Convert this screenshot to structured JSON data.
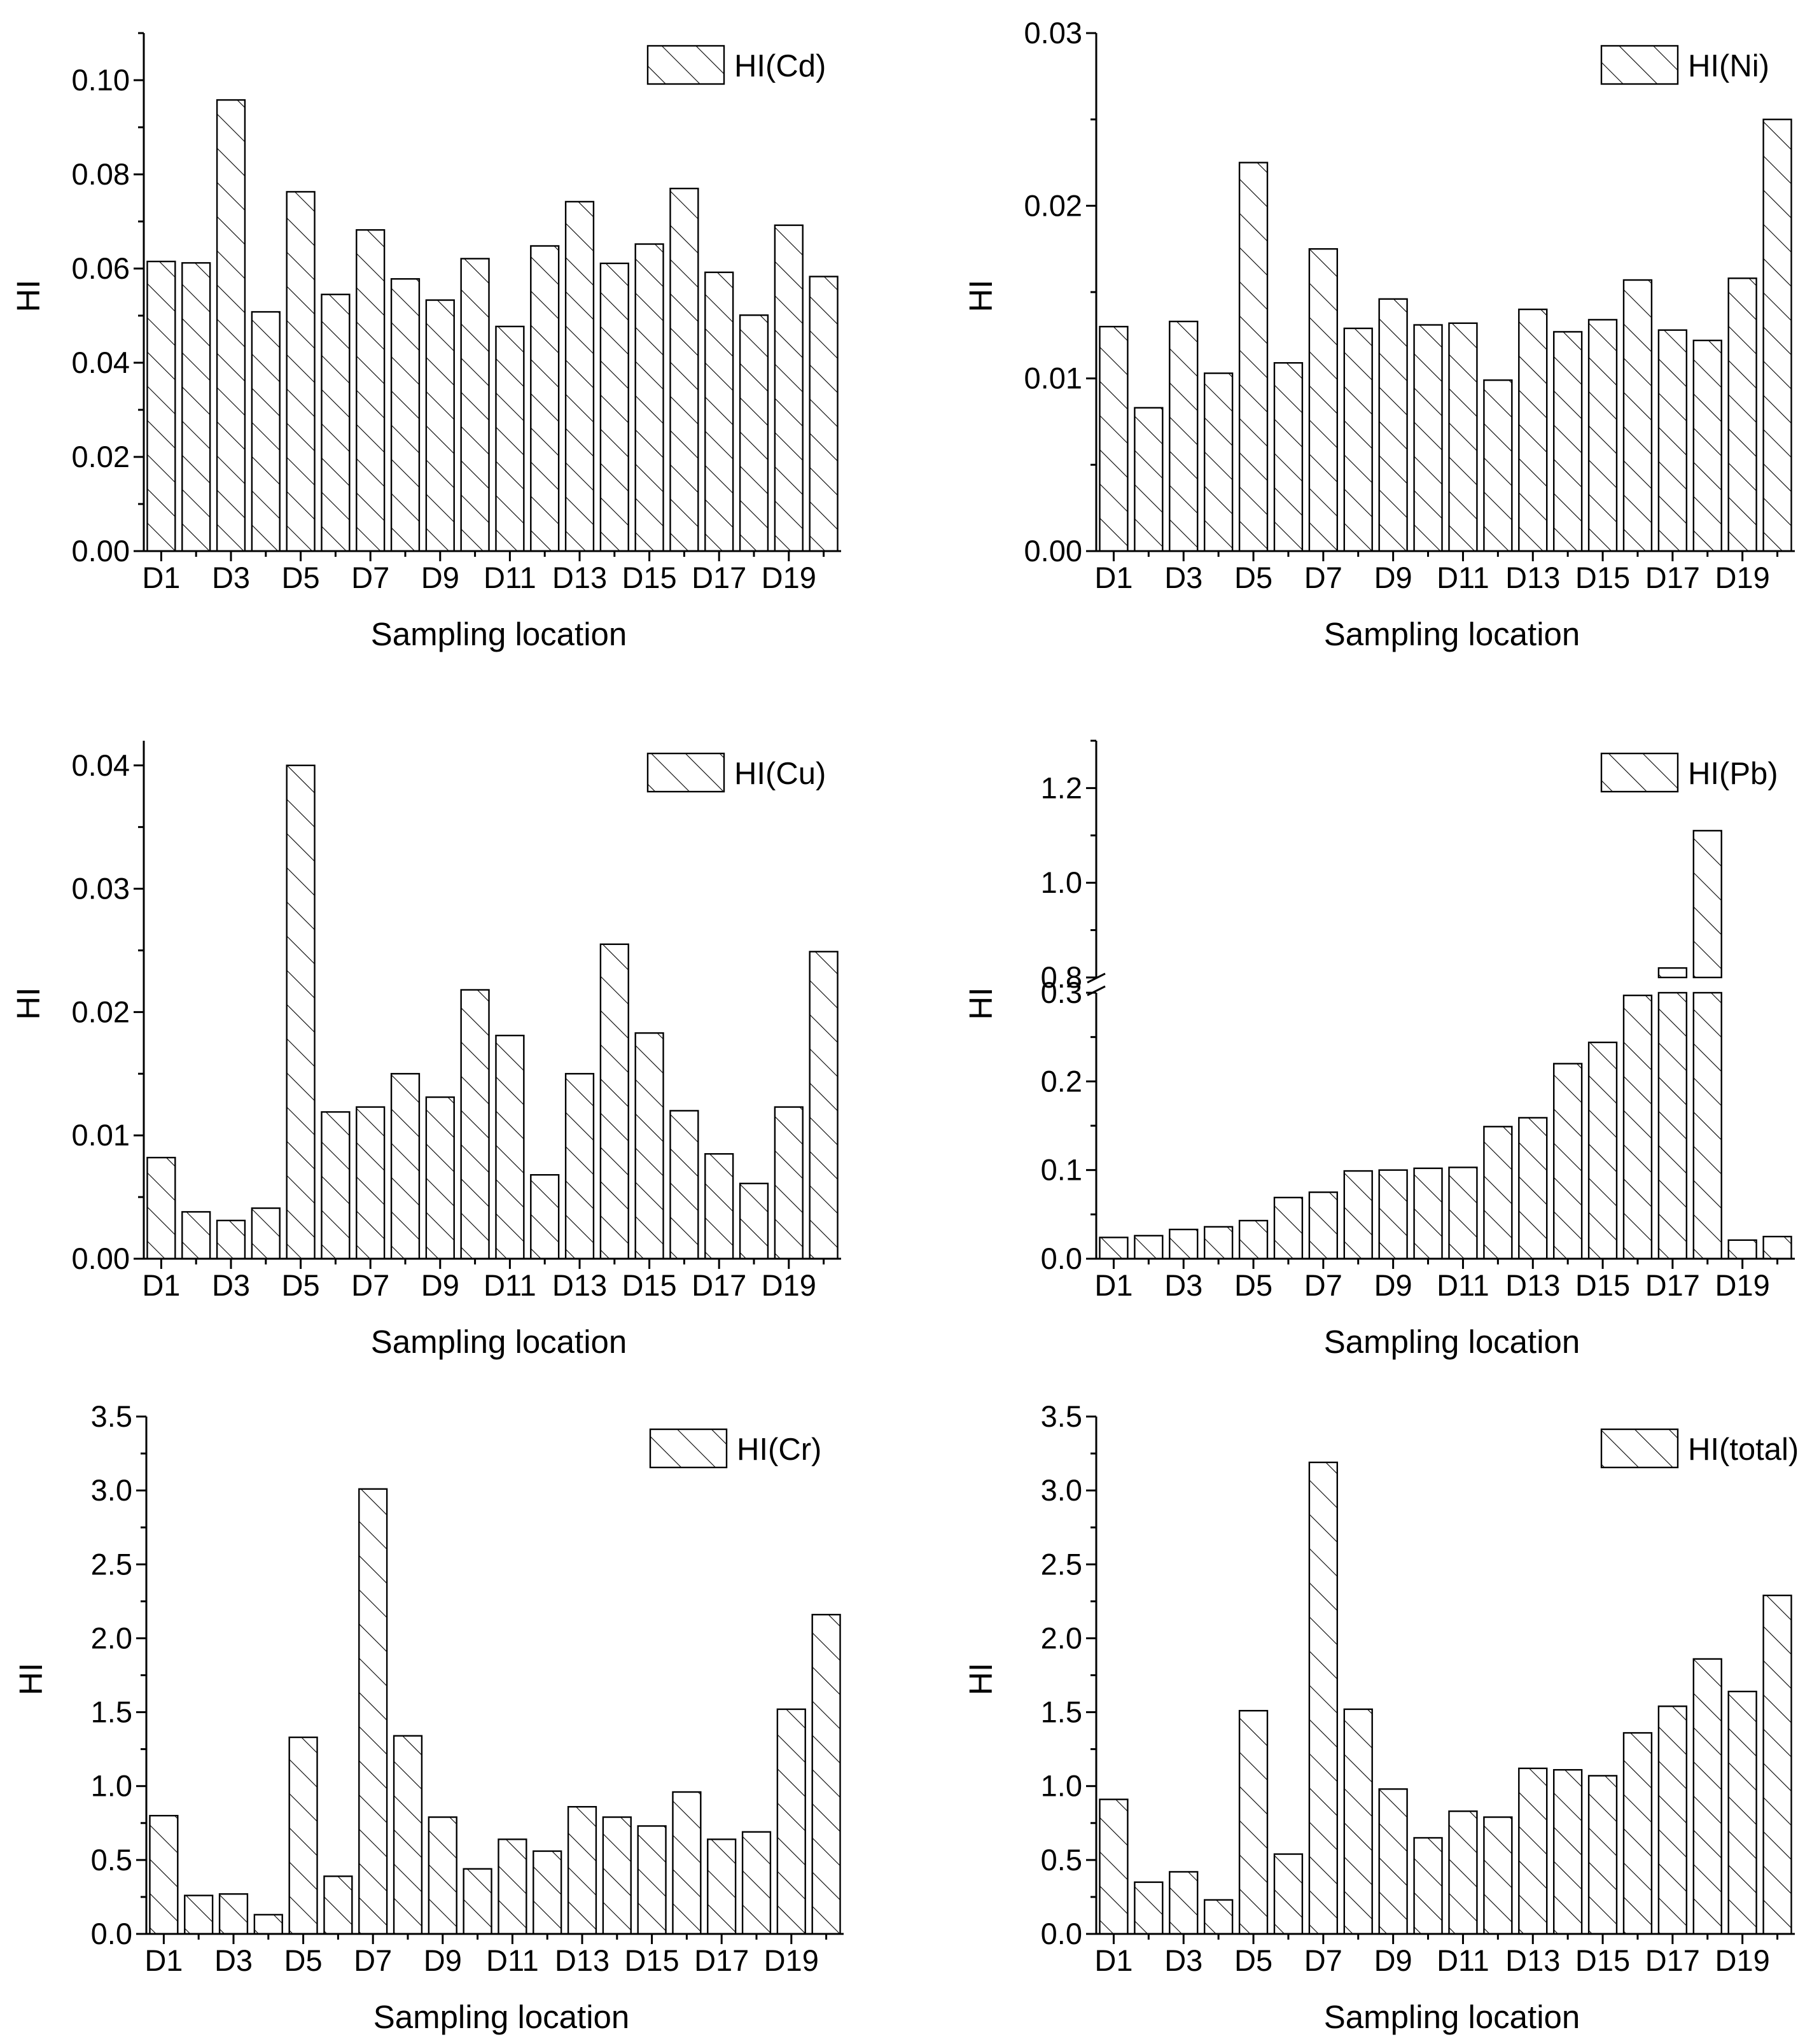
{
  "hatch_color": "#000000",
  "chart_data": [
    {
      "type": "bar",
      "title": "",
      "legend": "HI(Cd)",
      "legend_position": "top-right",
      "xlabel": "Sampling location",
      "ylabel": "HI",
      "ylim": [
        0,
        0.11
      ],
      "yticks": [
        "0.00",
        "0.02",
        "0.04",
        "0.06",
        "0.08",
        "0.10"
      ],
      "xtick_labels": [
        "D1",
        "D3",
        "D5",
        "D7",
        "D9",
        "D11",
        "D13",
        "D15",
        "D17",
        "D19"
      ],
      "categories": [
        "D1",
        "D2",
        "D3",
        "D4",
        "D5",
        "D6",
        "D7",
        "D8",
        "D9",
        "D10",
        "D11",
        "D12",
        "D13",
        "D14",
        "D15",
        "D16",
        "D17",
        "D18",
        "D19",
        "D20"
      ],
      "values": [
        0.0615,
        0.0612,
        0.0958,
        0.0508,
        0.0763,
        0.0545,
        0.0682,
        0.0578,
        0.0533,
        0.0621,
        0.0477,
        0.0648,
        0.0742,
        0.0611,
        0.0652,
        0.077,
        0.0592,
        0.0501,
        0.0692,
        0.0583
      ]
    },
    {
      "type": "bar",
      "title": "",
      "legend": "HI(Ni)",
      "legend_position": "top-right",
      "xlabel": "Sampling location",
      "ylabel": "HI",
      "ylim": [
        0,
        0.03
      ],
      "yticks": [
        "0.00",
        "0.01",
        "0.02",
        "0.03"
      ],
      "xtick_labels": [
        "D1",
        "D3",
        "D5",
        "D7",
        "D9",
        "D11",
        "D13",
        "D15",
        "D17",
        "D19"
      ],
      "categories": [
        "D1",
        "D2",
        "D3",
        "D4",
        "D5",
        "D6",
        "D7",
        "D8",
        "D9",
        "D10",
        "D11",
        "D12",
        "D13",
        "D14",
        "D15",
        "D16",
        "D17",
        "D18",
        "D19",
        "D20"
      ],
      "values": [
        0.013,
        0.0083,
        0.0133,
        0.0103,
        0.0225,
        0.0109,
        0.0175,
        0.0129,
        0.0146,
        0.0131,
        0.0132,
        0.0099,
        0.014,
        0.0127,
        0.0134,
        0.0157,
        0.0128,
        0.0122,
        0.0158,
        0.025
      ]
    },
    {
      "type": "bar",
      "title": "",
      "legend": "HI(Cu)",
      "legend_position": "top-right",
      "xlabel": "Sampling location",
      "ylabel": "HI",
      "ylim": [
        0,
        0.042
      ],
      "yticks": [
        "0.00",
        "0.01",
        "0.02",
        "0.03",
        "0.04"
      ],
      "xtick_labels": [
        "D1",
        "D3",
        "D5",
        "D7",
        "D9",
        "D11",
        "D13",
        "D15",
        "D17",
        "D19"
      ],
      "categories": [
        "D1",
        "D2",
        "D3",
        "D4",
        "D5",
        "D6",
        "D7",
        "D8",
        "D9",
        "D10",
        "D11",
        "D12",
        "D13",
        "D14",
        "D15",
        "D16",
        "D17",
        "D18",
        "D19",
        "D20"
      ],
      "values": [
        0.0082,
        0.0038,
        0.0031,
        0.0041,
        0.04,
        0.0119,
        0.0123,
        0.015,
        0.0131,
        0.0218,
        0.0181,
        0.0068,
        0.015,
        0.0255,
        0.0183,
        0.012,
        0.0085,
        0.0061,
        0.0123,
        0.0249
      ]
    },
    {
      "type": "bar",
      "title": "",
      "legend": "HI(Pb)",
      "legend_position": "top-right",
      "xlabel": "Sampling location",
      "ylabel": "HI",
      "y_axis_break": [
        0.3,
        0.8
      ],
      "ylim_lower": [
        0,
        0.3
      ],
      "ylim_upper": [
        0.8,
        1.3
      ],
      "yticks": [
        "0.0",
        "0.1",
        "0.2",
        "0.3",
        "0.8",
        "1.0",
        "1.2"
      ],
      "xtick_labels": [
        "D1",
        "D3",
        "D5",
        "D7",
        "D9",
        "D11",
        "D13",
        "D15",
        "D17",
        "D19"
      ],
      "categories": [
        "D1",
        "D2",
        "D3",
        "D4",
        "D5",
        "D6",
        "D7",
        "D8",
        "D9",
        "D10",
        "D11",
        "D12",
        "D13",
        "D14",
        "D15",
        "D16",
        "D17",
        "D18",
        "D19",
        "D20"
      ],
      "values": [
        0.024,
        0.026,
        0.033,
        0.036,
        0.043,
        0.069,
        0.075,
        0.099,
        0.1,
        0.102,
        0.103,
        0.149,
        0.159,
        0.22,
        0.244,
        0.297,
        0.82,
        1.11,
        0.021,
        0.025
      ]
    },
    {
      "type": "bar",
      "title": "",
      "legend": "HI(Cr)",
      "legend_position": "top-right",
      "xlabel": "Sampling location",
      "ylabel": "HI",
      "ylim": [
        0,
        3.5
      ],
      "yticks": [
        "0.0",
        "0.5",
        "1.0",
        "1.5",
        "2.0",
        "2.5",
        "3.0",
        "3.5"
      ],
      "xtick_labels": [
        "D1",
        "D3",
        "D5",
        "D7",
        "D9",
        "D11",
        "D13",
        "D15",
        "D17",
        "D19"
      ],
      "categories": [
        "D1",
        "D2",
        "D3",
        "D4",
        "D5",
        "D6",
        "D7",
        "D8",
        "D9",
        "D10",
        "D11",
        "D12",
        "D13",
        "D14",
        "D15",
        "D16",
        "D17",
        "D18",
        "D19",
        "D20"
      ],
      "values": [
        0.8,
        0.26,
        0.27,
        0.13,
        1.33,
        0.39,
        3.01,
        1.34,
        0.79,
        0.44,
        0.64,
        0.56,
        0.86,
        0.79,
        0.73,
        0.96,
        0.64,
        0.69,
        1.52,
        2.16
      ]
    },
    {
      "type": "bar",
      "title": "",
      "legend": "HI(total)",
      "legend_position": "top-right",
      "xlabel": "Sampling location",
      "ylabel": "HI",
      "ylim": [
        0,
        3.5
      ],
      "yticks": [
        "0.0",
        "0.5",
        "1.0",
        "1.5",
        "2.0",
        "2.5",
        "3.0",
        "3.5"
      ],
      "xtick_labels": [
        "D1",
        "D3",
        "D5",
        "D7",
        "D9",
        "D11",
        "D13",
        "D15",
        "D17",
        "D19"
      ],
      "categories": [
        "D1",
        "D2",
        "D3",
        "D4",
        "D5",
        "D6",
        "D7",
        "D8",
        "D9",
        "D10",
        "D11",
        "D12",
        "D13",
        "D14",
        "D15",
        "D16",
        "D17",
        "D18",
        "D19",
        "D20"
      ],
      "values": [
        0.91,
        0.35,
        0.42,
        0.23,
        1.51,
        0.54,
        3.19,
        1.52,
        0.98,
        0.65,
        0.83,
        0.79,
        1.12,
        1.11,
        1.07,
        1.36,
        1.54,
        1.86,
        1.64,
        2.29
      ]
    }
  ]
}
